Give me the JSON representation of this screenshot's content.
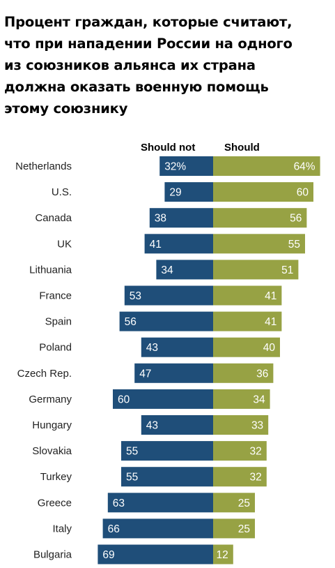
{
  "title_lines": [
    "Процент граждан, которые считают,",
    "что при нападении России на одного",
    "из союзников альянса их страна",
    "должна оказать военную помощь",
    "этому союзнику"
  ],
  "chart_data": {
    "type": "bar",
    "subtype": "diverging",
    "series": [
      {
        "name": "Should not",
        "color": "#1f4e79",
        "values": [
          32,
          29,
          38,
          41,
          34,
          53,
          56,
          43,
          47,
          60,
          43,
          55,
          55,
          63,
          66,
          69
        ]
      },
      {
        "name": "Should",
        "color": "#97a244",
        "values": [
          64,
          60,
          56,
          55,
          51,
          41,
          41,
          40,
          36,
          34,
          33,
          32,
          32,
          25,
          25,
          12
        ]
      }
    ],
    "categories": [
      "Netherlands",
      "U.S.",
      "Canada",
      "UK",
      "Lithuania",
      "France",
      "Spain",
      "Poland",
      "Czech Rep.",
      "Germany",
      "Hungary",
      "Slovakia",
      "Turkey",
      "Greece",
      "Italy",
      "Bulgaria"
    ],
    "value_labels_should_not": [
      "32%",
      "29",
      "38",
      "41",
      "34",
      "53",
      "56",
      "43",
      "47",
      "60",
      "43",
      "55",
      "55",
      "63",
      "66",
      "69"
    ],
    "value_labels_should": [
      "64%",
      "60",
      "56",
      "55",
      "51",
      "41",
      "41",
      "40",
      "36",
      "34",
      "33",
      "32",
      "32",
      "25",
      "25",
      "12"
    ],
    "legend_position": "top",
    "grid": false
  }
}
